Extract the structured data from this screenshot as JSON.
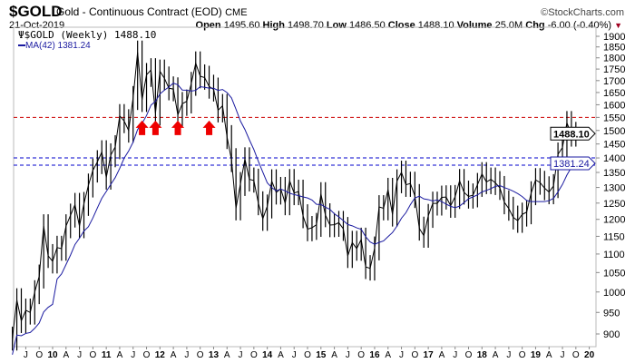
{
  "header": {
    "symbol": "$GOLD",
    "description": "Gold - Continuous Contract (EOD)",
    "exchange": "CME",
    "brand": "©StockCharts.com",
    "date": "21-Oct-2019",
    "open_label": "Open",
    "open": "1495.60",
    "high_label": "High",
    "high": "1498.70",
    "low_label": "Low",
    "low": "1486.50",
    "close_label": "Close",
    "close": "1488.10",
    "volume_label": "Volume",
    "volume": "25.0M",
    "chg_label": "Chg",
    "chg": "-6.00 (-0.40%)",
    "chg_arrow": "down-triangle-icon"
  },
  "legend": {
    "price": "$GOLD (Weekly) 1488.10",
    "ma": "MA(42) 1381.24"
  },
  "colors": {
    "price": "#000000",
    "ma": "#1a1aa0",
    "resistance": "#cc0000",
    "support": "#0000cc",
    "arrow": "#ee0000"
  },
  "chart_data": {
    "type": "line",
    "scale": "log",
    "ylim": [
      870,
      1950
    ],
    "yticks": [
      900,
      950,
      1000,
      1050,
      1100,
      1150,
      1200,
      1250,
      1300,
      1350,
      1400,
      1450,
      1500,
      1550,
      1600,
      1650,
      1700,
      1750,
      1800,
      1850,
      1900
    ],
    "xticks": [
      "J",
      "O",
      "10",
      "A",
      "J",
      "O",
      "11",
      "A",
      "J",
      "O",
      "12",
      "A",
      "J",
      "O",
      "13",
      "A",
      "J",
      "O",
      "14",
      "A",
      "J",
      "O",
      "15",
      "A",
      "J",
      "O",
      "16",
      "A",
      "J",
      "O",
      "17",
      "A",
      "J",
      "O",
      "18",
      "A",
      "J",
      "O",
      "19",
      "A",
      "J",
      "O",
      "20"
    ],
    "start": "2009-04",
    "interval": "month",
    "close": [
      890,
      980,
      930,
      955,
      950,
      1000,
      1040,
      1180,
      1095,
      1080,
      1118,
      1115,
      1180,
      1212,
      1245,
      1180,
      1248,
      1307,
      1357,
      1386,
      1421,
      1333,
      1410,
      1439,
      1556,
      1536,
      1500,
      1628,
      1825,
      1620,
      1725,
      1746,
      1566,
      1740,
      1710,
      1668,
      1664,
      1560,
      1604,
      1614,
      1687,
      1776,
      1719,
      1713,
      1675,
      1663,
      1578,
      1596,
      1476,
      1393,
      1234,
      1312,
      1396,
      1327,
      1323,
      1250,
      1202,
      1240,
      1321,
      1284,
      1296,
      1250,
      1322,
      1282,
      1287,
      1210,
      1171,
      1175,
      1184,
      1279,
      1213,
      1183,
      1184,
      1190,
      1172,
      1095,
      1132,
      1115,
      1141,
      1065,
      1061,
      1116,
      1238,
      1234,
      1293,
      1215,
      1321,
      1350,
      1309,
      1313,
      1273,
      1173,
      1152,
      1211,
      1249,
      1249,
      1268,
      1269,
      1242,
      1270,
      1322,
      1284,
      1271,
      1275,
      1309,
      1345,
      1318,
      1327,
      1315,
      1299,
      1253,
      1233,
      1206,
      1196,
      1215,
      1222,
      1282,
      1325,
      1316,
      1298,
      1285,
      1305,
      1413,
      1437,
      1529,
      1485,
      1488
    ],
    "ma_label": "MA(42)",
    "ma_last": 1381.24,
    "last_price": 1488.1,
    "last_price_label": "1488.10",
    "ma_last_label": "1381.24",
    "hlines": [
      {
        "value": 1550,
        "color": "resistance"
      },
      {
        "value": 1400,
        "color": "support"
      },
      {
        "value": 1375,
        "color": "support"
      }
    ],
    "arrows": [
      "2011-09",
      "2011-12",
      "2012-05",
      "2012-12"
    ]
  }
}
